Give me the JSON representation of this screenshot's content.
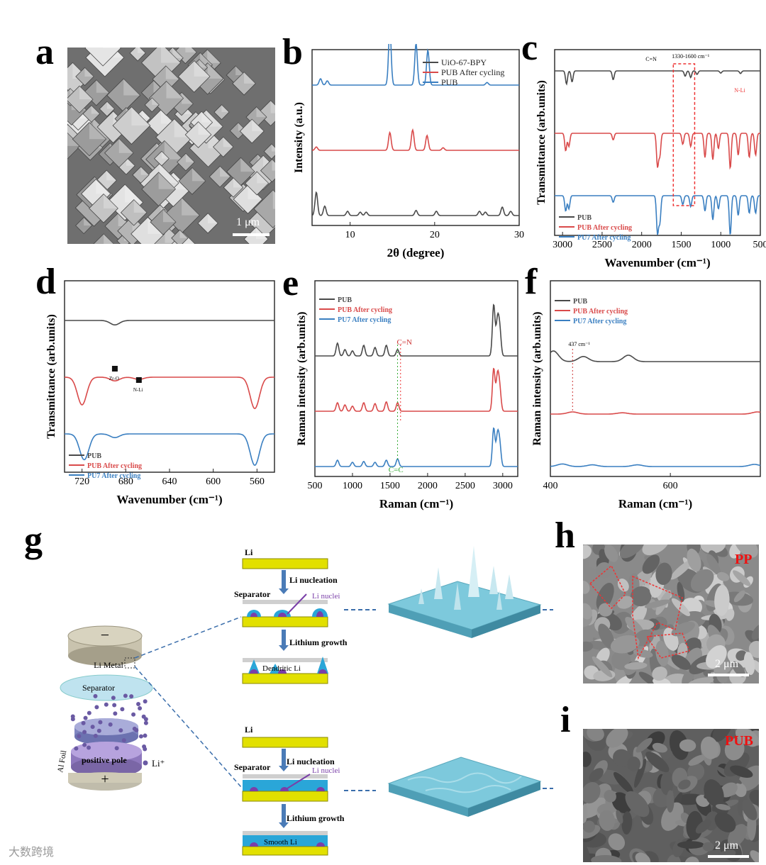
{
  "panels": {
    "a": {
      "letter": "a",
      "scale": "1 μm"
    },
    "b": {
      "letter": "b"
    },
    "c": {
      "letter": "c"
    },
    "d": {
      "letter": "d"
    },
    "e": {
      "letter": "e"
    },
    "f": {
      "letter": "f"
    },
    "g": {
      "letter": "g"
    },
    "h": {
      "letter": "h",
      "scale": "2 μm",
      "tag": "PP"
    },
    "i": {
      "letter": "i",
      "scale": "2 μm",
      "tag": "PUB"
    }
  },
  "colors": {
    "black": "#4a4a4a",
    "red": "#d94a4a",
    "blue": "#3a7fc1"
  },
  "chart_data": [
    {
      "id": "b",
      "type": "line",
      "xlabel": "2θ (degree)",
      "ylabel": "Intensity (a.u.)",
      "xlim": [
        5.5,
        30
      ],
      "xticks": [
        10,
        20,
        30
      ],
      "legend": [
        "UiO-67-BPY",
        "PUB After cycling",
        "PUB"
      ],
      "series": [
        {
          "name": "UiO-67-BPY",
          "offset": 0,
          "peaks": [
            [
              6.0,
              0.55
            ],
            [
              7.0,
              0.22
            ],
            [
              9.7,
              0.1
            ],
            [
              11.2,
              0.08
            ],
            [
              11.9,
              0.08
            ],
            [
              17.8,
              0.12
            ],
            [
              20.2,
              0.1
            ],
            [
              25.3,
              0.1
            ],
            [
              26.0,
              0.08
            ],
            [
              28.0,
              0.2
            ],
            [
              29.0,
              0.1
            ]
          ]
        },
        {
          "name": "PUB After cycling",
          "offset": 1,
          "peaks": [
            [
              6.0,
              0.08
            ],
            [
              14.7,
              0.42
            ],
            [
              17.4,
              0.48
            ],
            [
              19.1,
              0.35
            ],
            [
              21.0,
              0.06
            ]
          ]
        },
        {
          "name": "PUB",
          "offset": 2,
          "peaks": [
            [
              6.5,
              0.15
            ],
            [
              7.3,
              0.1
            ],
            [
              14.7,
              1.35
            ],
            [
              17.8,
              0.98
            ],
            [
              19.2,
              0.82
            ],
            [
              26.2,
              0.06
            ]
          ]
        }
      ]
    },
    {
      "id": "c",
      "type": "line",
      "xlabel": "Wavenumber (cm⁻¹)",
      "ylabel": "Transmittance (arb.units)",
      "xlim": [
        3100,
        500
      ],
      "xticks": [
        3000,
        2500,
        2000,
        1500,
        1000,
        500
      ],
      "legend": [
        "PUB",
        "PUB After cycling",
        "PU7 After cycling"
      ],
      "annotations": [
        "C=N",
        "1330-1600 cm⁻¹",
        "N-Li"
      ],
      "series": [
        {
          "name": "PUB",
          "offset": 2,
          "dips": [
            [
              2950,
              0.3
            ],
            [
              2880,
              0.25
            ],
            [
              2360,
              0.2
            ],
            [
              1450,
              0.12
            ],
            [
              1380,
              0.15
            ],
            [
              1300,
              0.08
            ],
            [
              1000,
              0.05
            ],
            [
              750,
              0.06
            ]
          ]
        },
        {
          "name": "PUB After cycling",
          "offset": 1,
          "dips": [
            [
              2960,
              0.4
            ],
            [
              2920,
              0.3
            ],
            [
              2360,
              0.15
            ],
            [
              1800,
              0.75
            ],
            [
              1770,
              0.5
            ],
            [
              1480,
              0.25
            ],
            [
              1380,
              0.3
            ],
            [
              1200,
              0.55
            ],
            [
              1100,
              0.6
            ],
            [
              1030,
              0.35
            ],
            [
              880,
              0.8
            ],
            [
              780,
              0.5
            ],
            [
              640,
              0.55
            ],
            [
              560,
              0.5
            ]
          ]
        },
        {
          "name": "PU7 After cycling",
          "offset": 0,
          "dips": [
            [
              2960,
              0.35
            ],
            [
              2920,
              0.3
            ],
            [
              2360,
              0.15
            ],
            [
              1800,
              0.85
            ],
            [
              1770,
              0.6
            ],
            [
              1480,
              0.2
            ],
            [
              1380,
              0.25
            ],
            [
              1200,
              0.35
            ],
            [
              1100,
              0.55
            ],
            [
              1030,
              0.3
            ],
            [
              880,
              0.9
            ],
            [
              780,
              0.45
            ],
            [
              640,
              0.4
            ],
            [
              560,
              0.4
            ]
          ]
        }
      ]
    },
    {
      "id": "d",
      "type": "line",
      "xlabel": "Wavenumber (cm⁻¹)",
      "ylabel": "Transmittance (arb.units)",
      "xlim": [
        736,
        544
      ],
      "xticks": [
        720,
        680,
        640,
        600,
        560
      ],
      "legend": [
        "PUB",
        "PUB After cycling",
        "PU7 After cycling"
      ],
      "annotations": [
        "Zr-O",
        "N-Li"
      ],
      "series": [
        {
          "name": "PUB",
          "offset": 2,
          "dips": [
            [
              690,
              0.12
            ]
          ]
        },
        {
          "name": "PUB After cycling",
          "offset": 1,
          "dips": [
            [
              720,
              0.75
            ],
            [
              690,
              0.1
            ],
            [
              668,
              0.06
            ],
            [
              562,
              0.85
            ]
          ]
        },
        {
          "name": "PU7 After cycling",
          "offset": 0,
          "dips": [
            [
              718,
              0.7
            ],
            [
              690,
              0.1
            ],
            [
              562,
              0.85
            ]
          ]
        }
      ]
    },
    {
      "id": "e",
      "type": "line",
      "xlabel": "Raman (cm⁻¹)",
      "ylabel": "Raman intensity (arb.units)",
      "xlim": [
        500,
        3200
      ],
      "xticks": [
        500,
        1000,
        1500,
        2000,
        2500,
        3000
      ],
      "legend": [
        "PUB",
        "PUB After cycling",
        "PU7 After cycling"
      ],
      "annotations": [
        "C=N",
        "C=C"
      ],
      "series": [
        {
          "name": "PUB",
          "offset": 2,
          "peaks": [
            [
              800,
              0.3
            ],
            [
              900,
              0.15
            ],
            [
              1000,
              0.12
            ],
            [
              1150,
              0.25
            ],
            [
              1300,
              0.2
            ],
            [
              1450,
              0.25
            ],
            [
              1600,
              0.15
            ],
            [
              2880,
              1.2
            ],
            [
              2930,
              0.8
            ],
            [
              2960,
              0.6
            ]
          ]
        },
        {
          "name": "PUB After cycling",
          "offset": 1,
          "peaks": [
            [
              800,
              0.2
            ],
            [
              900,
              0.15
            ],
            [
              1000,
              0.12
            ],
            [
              1150,
              0.2
            ],
            [
              1300,
              0.18
            ],
            [
              1450,
              0.22
            ],
            [
              1600,
              0.2
            ],
            [
              2880,
              1.0
            ],
            [
              2930,
              0.8
            ],
            [
              2960,
              0.5
            ]
          ]
        },
        {
          "name": "PU7 After cycling",
          "offset": 0,
          "peaks": [
            [
              800,
              0.15
            ],
            [
              1000,
              0.1
            ],
            [
              1150,
              0.12
            ],
            [
              1300,
              0.1
            ],
            [
              1450,
              0.15
            ],
            [
              1600,
              0.18
            ],
            [
              2880,
              0.9
            ],
            [
              2930,
              0.7
            ],
            [
              2960,
              0.5
            ]
          ]
        }
      ]
    },
    {
      "id": "f",
      "type": "line",
      "xlabel": "Raman (cm⁻¹)",
      "ylabel": "Raman intensity (arb.units)",
      "xlim": [
        400,
        750
      ],
      "xticks": [
        400,
        600
      ],
      "legend": [
        "PUB",
        "PUB After cycling",
        "PU7 After cycling"
      ],
      "annotations": [
        "437 cm⁻¹"
      ],
      "series": [
        {
          "name": "PUB",
          "offset": 2,
          "peaks": [
            [
              405,
              0.25
            ],
            [
              455,
              0.12
            ],
            [
              530,
              0.15
            ]
          ]
        },
        {
          "name": "PUB After cycling",
          "offset": 1,
          "peaks": [
            [
              437,
              0.05
            ],
            [
              520,
              0.03
            ],
            [
              745,
              0.05
            ]
          ]
        },
        {
          "name": "PU7 After cycling",
          "offset": 0,
          "peaks": [
            [
              420,
              0.06
            ],
            [
              470,
              0.04
            ],
            [
              545,
              0.04
            ],
            [
              740,
              0.05
            ]
          ]
        }
      ]
    }
  ],
  "schematic": {
    "neg": "−",
    "pos": "+",
    "li_metal": "Li Metal",
    "separator": "Separator",
    "al_foil": "Al Foil",
    "positive_pole": "positive pole",
    "li_ion": "Li⁺",
    "li": "Li",
    "li_nucleation": "Li nucleation",
    "li_nuclei": "Li nuclei",
    "lithium_growth": "Lithium growth",
    "dendritic_li": "Dendritic Li",
    "smooth_li": "Smooth Li"
  },
  "watermark": "大数跨境"
}
